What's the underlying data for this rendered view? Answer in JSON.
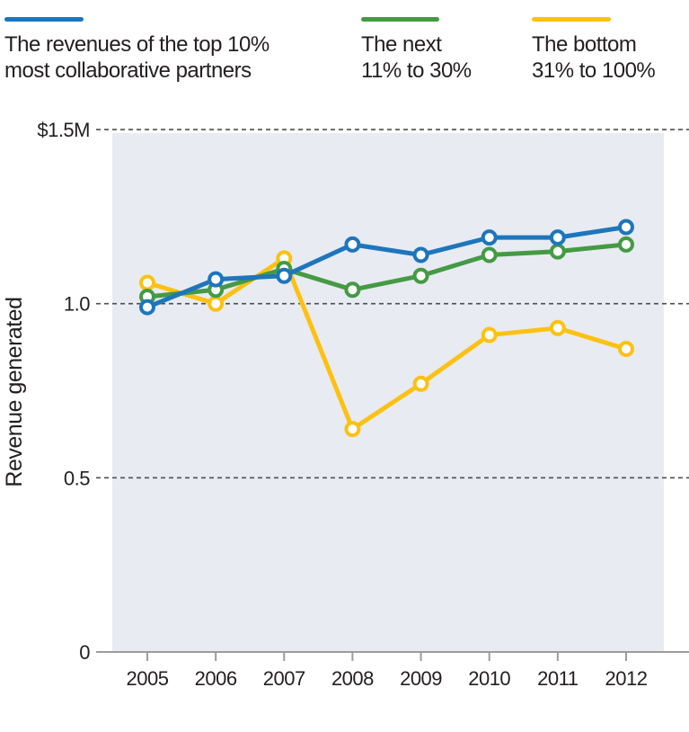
{
  "chart_data": {
    "type": "line",
    "x": [
      "2005",
      "2006",
      "2007",
      "2008",
      "2009",
      "2010",
      "2011",
      "2012"
    ],
    "series": [
      {
        "name": "The revenues of the top 10%\nmost collaborative partners",
        "color": "#1d76bc",
        "values": [
          0.99,
          1.07,
          1.08,
          1.17,
          1.14,
          1.19,
          1.19,
          1.22
        ]
      },
      {
        "name": "The next\n11% to 30%",
        "color": "#459a44",
        "values": [
          1.02,
          1.04,
          1.1,
          1.04,
          1.08,
          1.14,
          1.15,
          1.17
        ]
      },
      {
        "name": "The bottom\n31% to 100%",
        "color": "#fcc112",
        "values": [
          1.06,
          1.0,
          1.13,
          0.64,
          0.77,
          0.91,
          0.93,
          0.87
        ]
      }
    ],
    "ylabel": "Revenue generated",
    "xlabel": "",
    "title": "",
    "ylim": [
      0,
      1.5
    ],
    "yticks": [
      {
        "value": 1.5,
        "label": "$1.5M"
      },
      {
        "value": 1.0,
        "label": "1.0"
      },
      {
        "value": 0.5,
        "label": "0.5"
      },
      {
        "value": 0.0,
        "label": "0"
      }
    ],
    "grid": "horizontal-dashed",
    "legend_position": "top",
    "plot_bg": "#e8ebf2",
    "grid_color": "#4f4f4f",
    "axis_color": "#9c9c9c",
    "text_color": "#231f20",
    "marker": "open-circle"
  }
}
